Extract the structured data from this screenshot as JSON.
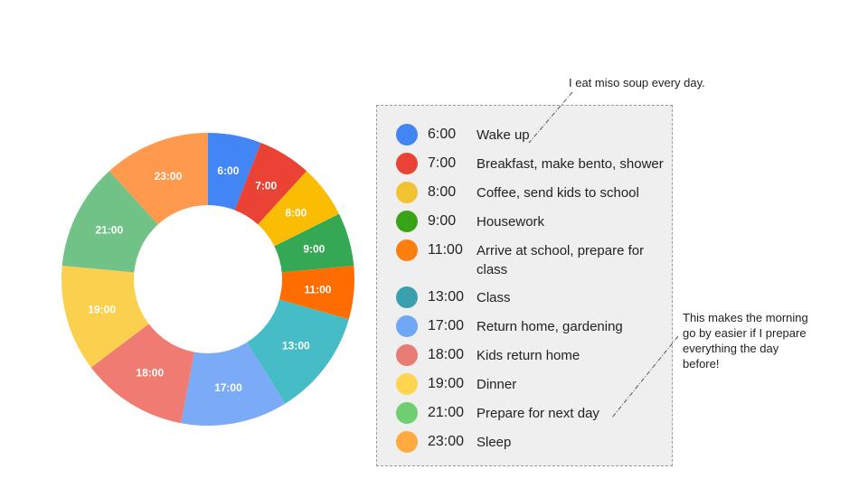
{
  "chart_data": {
    "type": "pie",
    "hole": true,
    "slices": [
      {
        "label": "6:00",
        "value": 1,
        "color": "#4285f4"
      },
      {
        "label": "7:00",
        "value": 1,
        "color": "#ea4335"
      },
      {
        "label": "8:00",
        "value": 1,
        "color": "#fbbc04"
      },
      {
        "label": "9:00",
        "value": 1,
        "color": "#34a853"
      },
      {
        "label": "11:00",
        "value": 1,
        "color": "#ff6d01"
      },
      {
        "label": "13:00",
        "value": 2,
        "color": "#46bdc6"
      },
      {
        "label": "17:00",
        "value": 2,
        "color": "#7baaf7"
      },
      {
        "label": "18:00",
        "value": 2,
        "color": "#f07b72"
      },
      {
        "label": "19:00",
        "value": 2,
        "color": "#fcd04f"
      },
      {
        "label": "21:00",
        "value": 2,
        "color": "#71c287"
      },
      {
        "label": "23:00",
        "value": 2,
        "color": "#ff994d"
      }
    ]
  },
  "legend": [
    {
      "time": "6:00",
      "text": "Wake up",
      "color": "#4285f4"
    },
    {
      "time": "7:00",
      "text": "Breakfast, make bento, shower",
      "color": "#ea4335"
    },
    {
      "time": "8:00",
      "text": "Coffee, send kids to school",
      "color": "#f1c232"
    },
    {
      "time": "9:00",
      "text": "Housework",
      "color": "#38a317"
    },
    {
      "time": "11:00",
      "text": "Arrive at school, prepare for class",
      "color": "#ff7f0e"
    },
    {
      "time": "13:00",
      "text": "Class",
      "color": "#3aa0ae"
    },
    {
      "time": "17:00",
      "text": "Return home, gardening",
      "color": "#6fa8f5"
    },
    {
      "time": "18:00",
      "text": "Kids return home",
      "color": "#e67c73"
    },
    {
      "time": "19:00",
      "text": "Dinner",
      "color": "#ffd54f"
    },
    {
      "time": "21:00",
      "text": "Prepare for next day",
      "color": "#6fce72"
    },
    {
      "time": "23:00",
      "text": "Sleep",
      "color": "#ffab40"
    }
  ],
  "notes": {
    "miso": "I eat miso soup every day.",
    "prepare": "This makes the morning go by easier if I prepare everything the day before!"
  }
}
